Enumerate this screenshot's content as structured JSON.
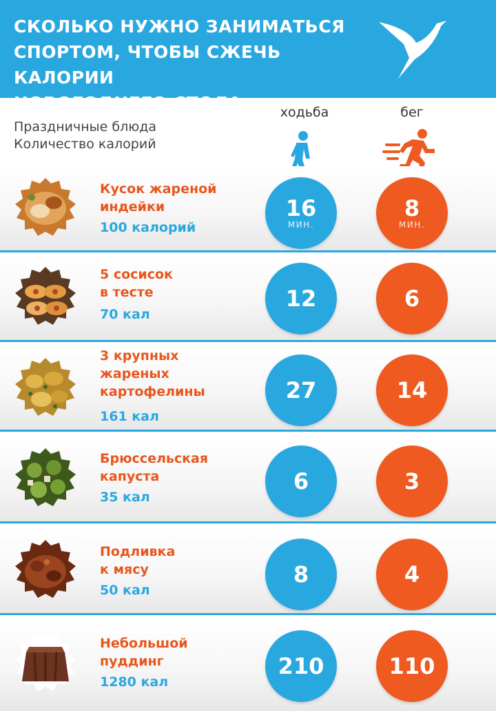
{
  "header": {
    "title": "СКОЛЬКО НУЖНО ЗАНИМАТЬСЯ\nСПОРТОМ, ЧТОБЫ СЖЕЧЬ КАЛОРИИ\nНОВОГОДНЕГО СТОЛА",
    "background": "#29a8e0"
  },
  "subtitle": {
    "line1": "Праздничные блюда",
    "line2": "Количество калорий"
  },
  "columns": {
    "walk_label": "ходьба",
    "run_label": "бег",
    "walk_icon": "walking-person-icon",
    "run_icon": "running-person-icon"
  },
  "colors": {
    "blue": "#29a8e0",
    "orange": "#ee5a1f"
  },
  "rows": [
    {
      "name": "Кусок жареной\nиндейки",
      "kcal": "100 калорий",
      "walk": "16",
      "run": "8",
      "walk_unit": "МИН.",
      "run_unit": "МИН.",
      "image": "roast-turkey-image"
    },
    {
      "name": "5 сосисок\nв тесте",
      "kcal": "70 кал",
      "walk": "12",
      "run": "6",
      "image": "sausage-rolls-image"
    },
    {
      "name": "3 крупных\nжареных\nкартофелины",
      "kcal": "161 кал",
      "walk": "27",
      "run": "14",
      "image": "roast-potatoes-image"
    },
    {
      "name": "Брюссельская\nкапуста",
      "kcal": "35 кал",
      "walk": "6",
      "run": "3",
      "image": "brussels-sprouts-image"
    },
    {
      "name": "Подливка\nк мясу",
      "kcal": "50 кал",
      "walk": "8",
      "run": "4",
      "image": "gravy-meat-image"
    },
    {
      "name": "Небольшой\nпуддинг",
      "kcal": "1280 кал",
      "walk": "210",
      "run": "110",
      "image": "chocolate-pudding-image"
    }
  ]
}
